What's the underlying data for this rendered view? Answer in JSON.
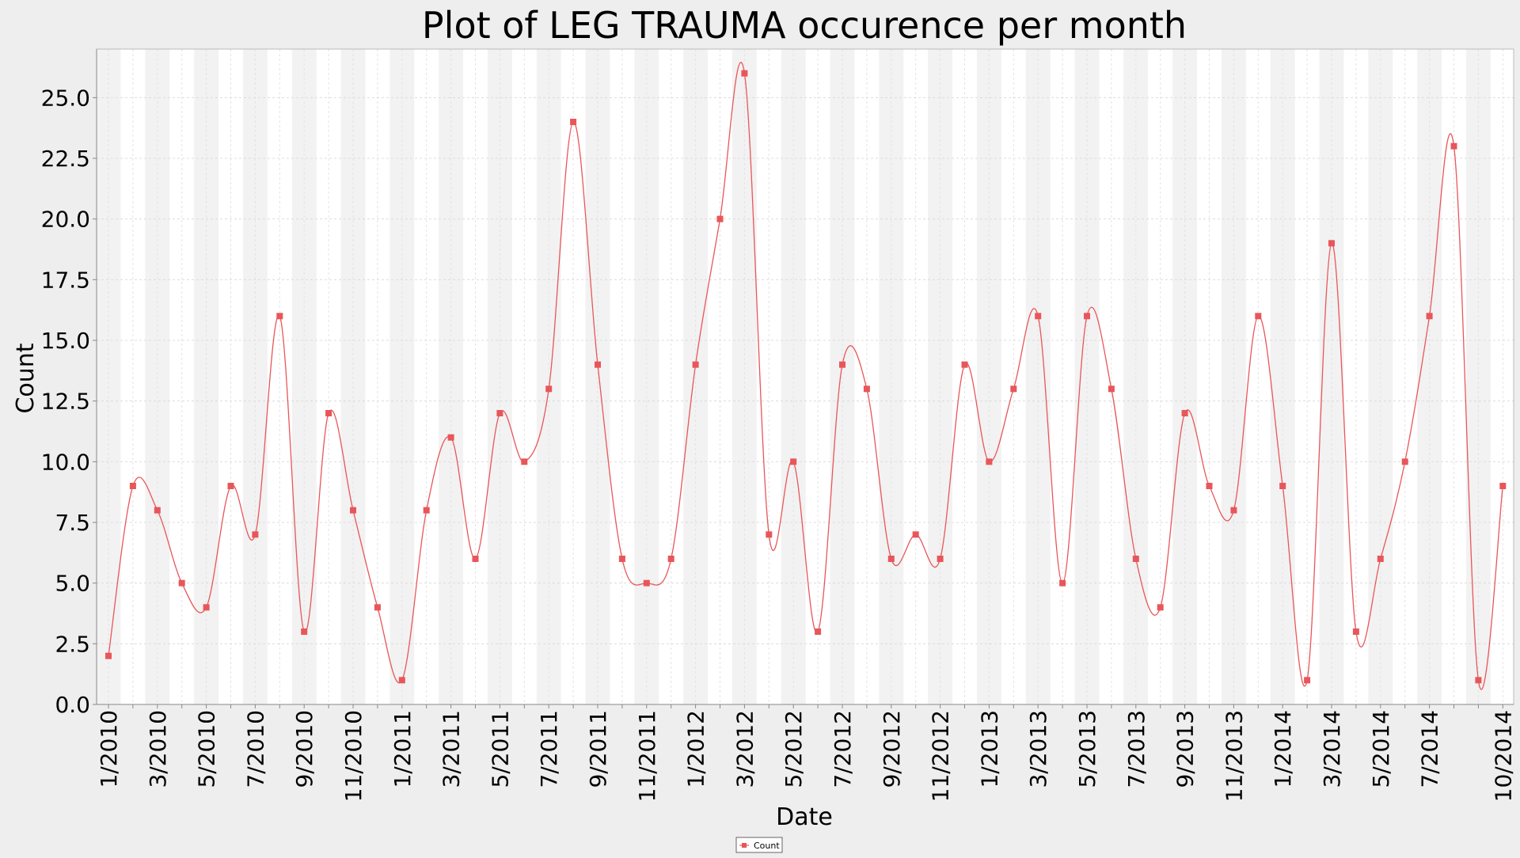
{
  "chart_data": {
    "type": "line",
    "title": "Plot of LEG TRAUMA occurence per month",
    "xlabel": "Date",
    "ylabel": "Count",
    "ylim": [
      0,
      27
    ],
    "yticks": [
      0.0,
      2.5,
      5.0,
      7.5,
      10.0,
      12.5,
      15.0,
      17.5,
      20.0,
      22.5,
      25.0
    ],
    "ytick_labels": [
      "0.0",
      "2.5",
      "5.0",
      "7.5",
      "10.0",
      "12.5",
      "15.0",
      "17.5",
      "20.0",
      "22.5",
      "25.0"
    ],
    "xtick_labels": [
      "1/2010",
      "3/2010",
      "5/2010",
      "7/2010",
      "9/2010",
      "11/2010",
      "1/2011",
      "3/2011",
      "5/2011",
      "7/2011",
      "9/2011",
      "11/2011",
      "1/2012",
      "3/2012",
      "5/2012",
      "7/2012",
      "9/2012",
      "11/2012",
      "1/2013",
      "3/2013",
      "5/2013",
      "7/2013",
      "9/2013",
      "11/2013",
      "1/2014",
      "3/2014",
      "5/2014",
      "7/2014",
      "10/2014"
    ],
    "xtick_month_index": [
      0,
      2,
      4,
      6,
      8,
      10,
      12,
      14,
      16,
      18,
      20,
      22,
      24,
      26,
      28,
      30,
      32,
      34,
      36,
      38,
      40,
      42,
      44,
      46,
      48,
      50,
      52,
      54,
      57
    ],
    "grid": true,
    "legend_position": "bottom-center",
    "series": [
      {
        "name": "Count",
        "color": "#e8565a",
        "x": [
          "2010-01",
          "2010-02",
          "2010-03",
          "2010-04",
          "2010-05",
          "2010-06",
          "2010-07",
          "2010-08",
          "2010-09",
          "2010-10",
          "2010-11",
          "2010-12",
          "2011-01",
          "2011-02",
          "2011-03",
          "2011-04",
          "2011-05",
          "2011-06",
          "2011-07",
          "2011-08",
          "2011-09",
          "2011-10",
          "2011-11",
          "2011-12",
          "2012-01",
          "2012-02",
          "2012-03",
          "2012-04",
          "2012-05",
          "2012-06",
          "2012-07",
          "2012-08",
          "2012-09",
          "2012-10",
          "2012-11",
          "2012-12",
          "2013-01",
          "2013-02",
          "2013-03",
          "2013-04",
          "2013-05",
          "2013-06",
          "2013-07",
          "2013-08",
          "2013-09",
          "2013-10",
          "2013-11",
          "2013-12",
          "2014-01",
          "2014-02",
          "2014-03",
          "2014-04",
          "2014-05",
          "2014-06",
          "2014-07",
          "2014-08",
          "2014-09",
          "2014-10"
        ],
        "values": [
          2,
          9,
          8,
          5,
          4,
          9,
          7,
          16,
          3,
          12,
          8,
          4,
          1,
          8,
          11,
          6,
          12,
          10,
          13,
          24,
          14,
          6,
          5,
          6,
          14,
          20,
          26,
          7,
          10,
          3,
          14,
          13,
          6,
          7,
          6,
          14,
          10,
          13,
          16,
          5,
          16,
          13,
          6,
          4,
          12,
          9,
          8,
          16,
          9,
          1,
          19,
          3,
          6,
          10,
          16,
          23,
          1,
          9
        ]
      }
    ]
  }
}
